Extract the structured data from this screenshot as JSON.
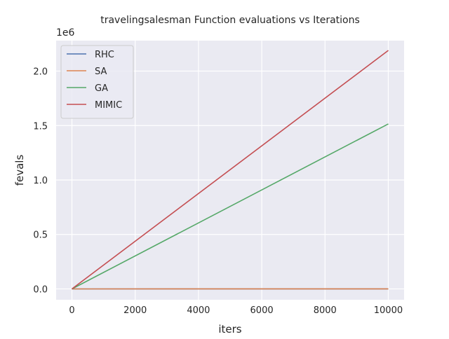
{
  "chart_data": {
    "type": "line",
    "title": "travelingsalesman Function evaluations vs Iterations",
    "xlabel": "iters",
    "ylabel": "fevals",
    "offset_label": "1e6",
    "xlim": [
      -500,
      10500
    ],
    "ylim": [
      -0.1,
      2.28
    ],
    "xticks": [
      0,
      2000,
      4000,
      6000,
      8000,
      10000
    ],
    "xtick_labels": [
      "0",
      "2000",
      "4000",
      "6000",
      "8000",
      "10000"
    ],
    "yticks": [
      0.0,
      0.5,
      1.0,
      1.5,
      2.0
    ],
    "ytick_labels": [
      "0.0",
      "0.5",
      "1.0",
      "1.5",
      "2.0"
    ],
    "grid": true,
    "legend_position": "top-left",
    "x": [
      0,
      10000
    ],
    "series": [
      {
        "name": "RHC",
        "color": "#4c72b0",
        "values": [
          0,
          0.0001
        ]
      },
      {
        "name": "SA",
        "color": "#dd8452",
        "values": [
          0,
          0.0001
        ]
      },
      {
        "name": "GA",
        "color": "#55a868",
        "values": [
          0,
          1.515
        ]
      },
      {
        "name": "MIMIC",
        "color": "#c44e52",
        "values": [
          0,
          2.19
        ]
      }
    ]
  }
}
